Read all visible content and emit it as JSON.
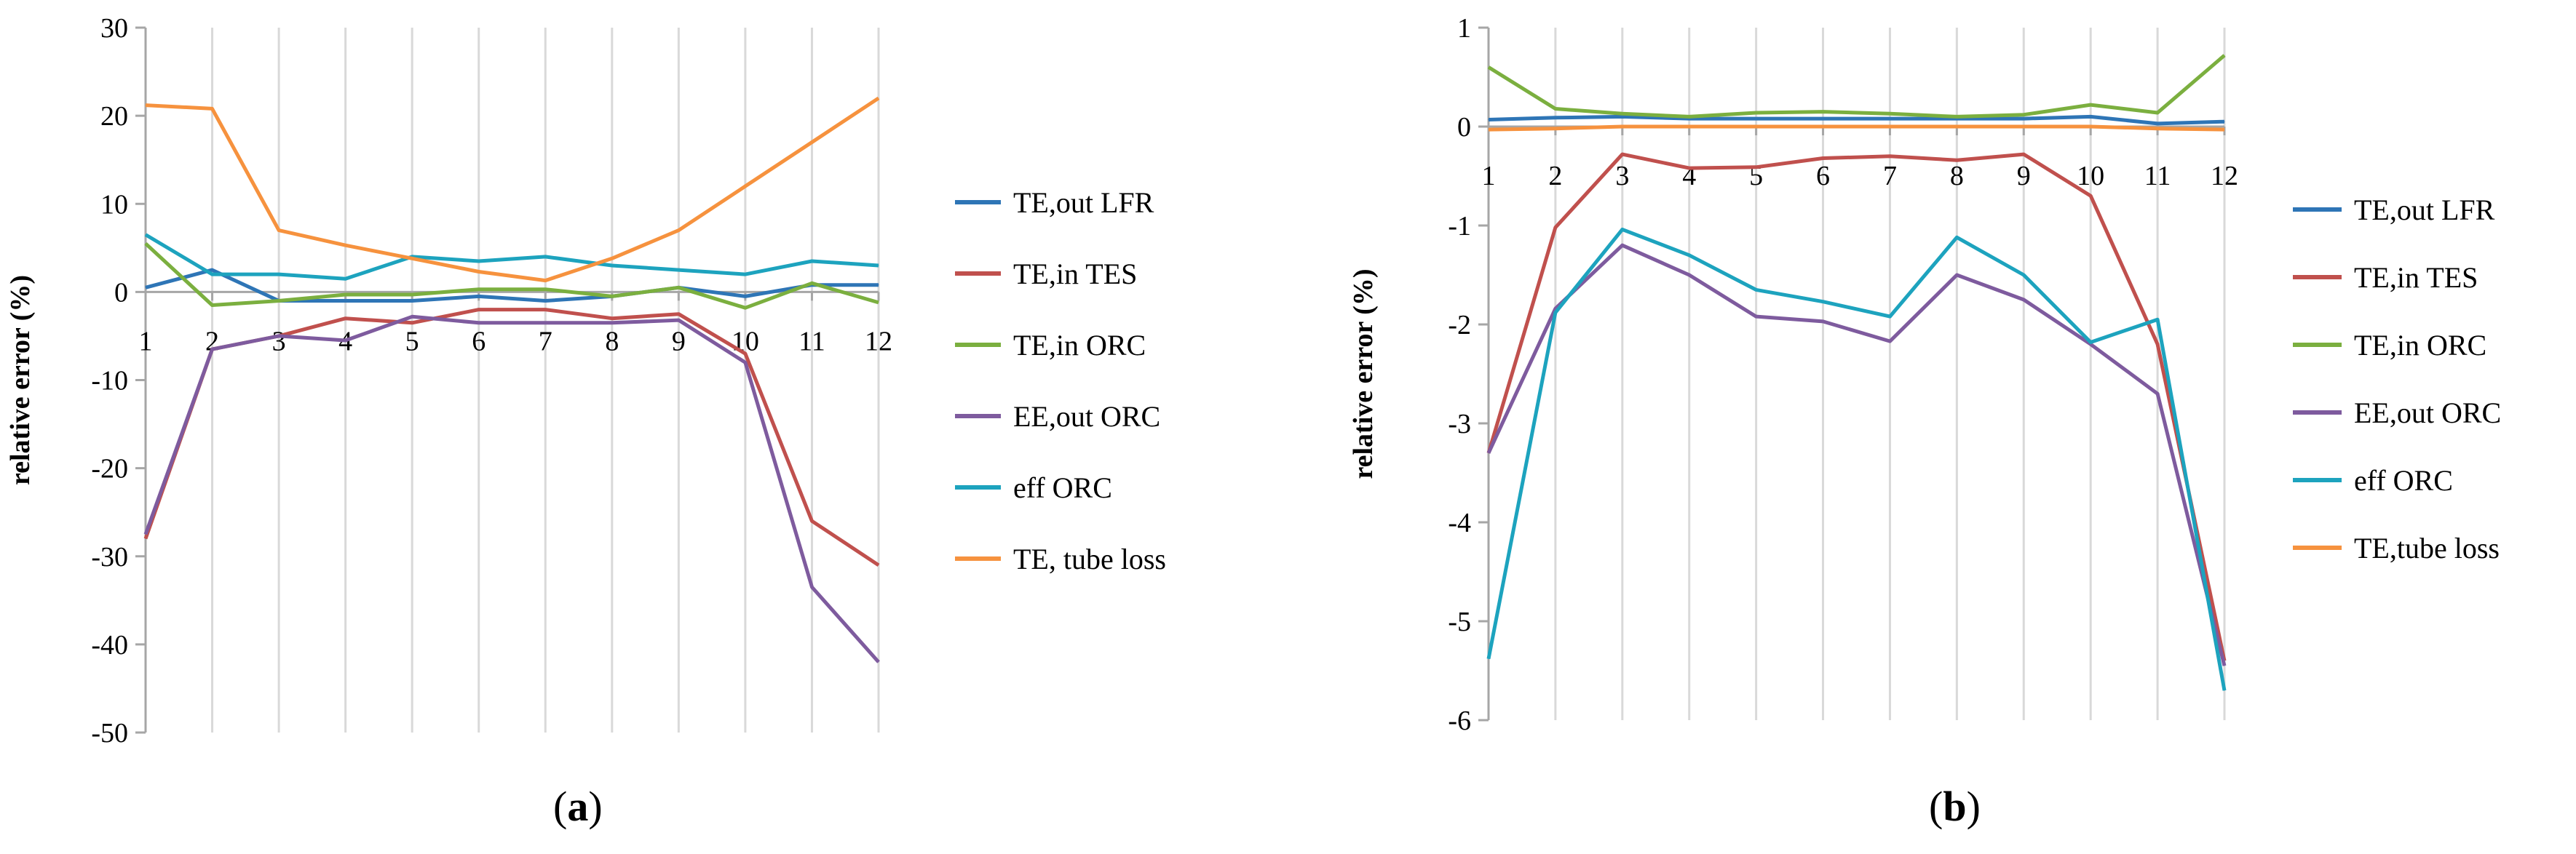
{
  "chart_data": [
    {
      "type": "line",
      "caption": "a",
      "ylabel": "relative error (%)",
      "xlabel": "",
      "categories": [
        "1",
        "2",
        "3",
        "4",
        "5",
        "6",
        "7",
        "8",
        "9",
        "10",
        "11",
        "12"
      ],
      "ylim": [
        -50,
        30
      ],
      "yticks": [
        30,
        20,
        10,
        0,
        -10,
        -20,
        -30,
        -40,
        -50
      ],
      "ytick_labels": [
        "30",
        "20",
        "10",
        "0",
        "-10",
        "-20",
        "-30",
        "-40",
        "-50"
      ],
      "grid": "vertical",
      "legend_position": "right",
      "series": [
        {
          "name": "TE,out LFR",
          "color": "#2E75B6",
          "values": [
            0.5,
            2.5,
            -1,
            -1,
            -1,
            -0.5,
            -1,
            -0.5,
            0.5,
            -0.5,
            0.8,
            0.8
          ]
        },
        {
          "name": "TE,in TES",
          "color": "#C0504D",
          "values": [
            -28,
            -6.5,
            -5,
            -3,
            -3.5,
            -2,
            -2,
            -3,
            -2.5,
            -7,
            -26,
            -31
          ]
        },
        {
          "name": "TE,in ORC",
          "color": "#7BAF3F",
          "values": [
            5.5,
            -1.5,
            -1,
            -0.3,
            -0.3,
            0.3,
            0.3,
            -0.5,
            0.5,
            -1.8,
            1,
            -1.2
          ]
        },
        {
          "name": "EE,out ORC",
          "color": "#7E5B9E",
          "values": [
            -27.5,
            -6.5,
            -5,
            -5.5,
            -2.8,
            -3.5,
            -3.5,
            -3.5,
            -3.2,
            -8,
            -33.5,
            -42
          ]
        },
        {
          "name": "eff ORC",
          "color": "#1DA3BE",
          "values": [
            6.5,
            2,
            2,
            1.5,
            4,
            3.5,
            4,
            3,
            2.5,
            2,
            3.5,
            3
          ]
        },
        {
          "name": "TE, tube loss",
          "color": "#F6923E",
          "values": [
            21.2,
            20.8,
            7,
            5.3,
            3.8,
            2.3,
            1.3,
            3.8,
            7,
            12,
            17,
            22
          ]
        }
      ]
    },
    {
      "type": "line",
      "caption": "b",
      "ylabel": "relative error (%)",
      "xlabel": "",
      "categories": [
        "1",
        "2",
        "3",
        "4",
        "5",
        "6",
        "7",
        "8",
        "9",
        "10",
        "11",
        "12"
      ],
      "ylim": [
        -6,
        1
      ],
      "yticks": [
        1,
        0,
        -1,
        -2,
        -3,
        -4,
        -5,
        -6
      ],
      "ytick_labels": [
        "1",
        "0",
        "-1",
        "-2",
        "-3",
        "-4",
        "-5",
        "-6"
      ],
      "grid": "vertical",
      "legend_position": "right",
      "series": [
        {
          "name": "TE,out LFR",
          "color": "#2E75B6",
          "values": [
            0.07,
            0.09,
            0.1,
            0.08,
            0.08,
            0.08,
            0.08,
            0.08,
            0.08,
            0.1,
            0.03,
            0.05
          ]
        },
        {
          "name": "TE,in TES",
          "color": "#C0504D",
          "values": [
            -3.3,
            -1.02,
            -0.28,
            -0.42,
            -0.41,
            -0.32,
            -0.3,
            -0.34,
            -0.28,
            -0.7,
            -2.2,
            -5.4
          ]
        },
        {
          "name": "TE,in ORC",
          "color": "#7BAF3F",
          "values": [
            0.6,
            0.18,
            0.13,
            0.1,
            0.14,
            0.15,
            0.13,
            0.1,
            0.12,
            0.22,
            0.14,
            0.72
          ]
        },
        {
          "name": "EE,out ORC",
          "color": "#7E5B9E",
          "values": [
            -3.3,
            -1.84,
            -1.2,
            -1.5,
            -1.92,
            -1.97,
            -2.17,
            -1.5,
            -1.75,
            -2.2,
            -2.7,
            -5.45
          ]
        },
        {
          "name": "eff ORC",
          "color": "#1DA3BE",
          "values": [
            -5.38,
            -1.88,
            -1.04,
            -1.3,
            -1.65,
            -1.77,
            -1.92,
            -1.12,
            -1.5,
            -2.18,
            -1.95,
            -5.7
          ]
        },
        {
          "name": "TE,tube loss",
          "color": "#F6923E",
          "values": [
            -0.03,
            -0.02,
            0,
            0,
            0,
            0,
            0,
            0,
            0,
            0,
            -0.02,
            -0.03
          ]
        }
      ]
    }
  ]
}
